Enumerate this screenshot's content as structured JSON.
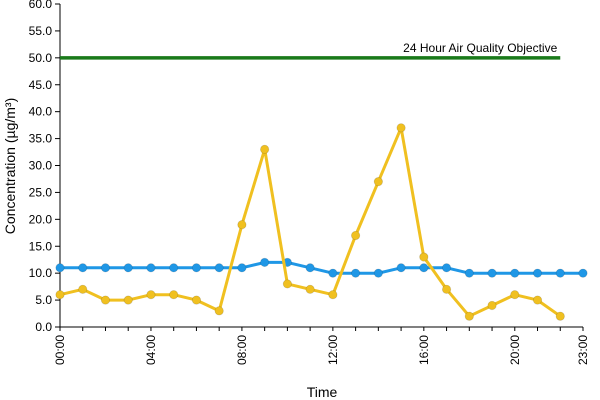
{
  "chart_data": {
    "type": "line",
    "xlabel": "Time",
    "ylabel": "Concentration (µg/m³)",
    "ylim": [
      0,
      60
    ],
    "y_ticks": [
      "0.0",
      "5.0",
      "10.0",
      "15.0",
      "20.0",
      "25.0",
      "30.0",
      "35.0",
      "40.0",
      "45.0",
      "50.0",
      "55.0",
      "60.0"
    ],
    "x_range_hours": [
      0,
      23
    ],
    "x_ticks": [
      {
        "hour": 0,
        "label": "00:00"
      },
      {
        "hour": 4,
        "label": "04:00"
      },
      {
        "hour": 8,
        "label": "08:00"
      },
      {
        "hour": 12,
        "label": "12:00"
      },
      {
        "hour": 16,
        "label": "16:00"
      },
      {
        "hour": 20,
        "label": "20:00"
      },
      {
        "hour": 23,
        "label": "23:00"
      }
    ],
    "grid": false,
    "series": [
      {
        "color": "#1f97e6",
        "x": [
          0,
          1,
          2,
          3,
          4,
          5,
          6,
          7,
          8,
          9,
          10,
          11,
          12,
          13,
          14,
          15,
          16,
          17,
          18,
          19,
          20,
          21,
          22,
          23
        ],
        "values": [
          11,
          11,
          11,
          11,
          11,
          11,
          11,
          11,
          11,
          12,
          12,
          11,
          10,
          10,
          10,
          11,
          11,
          11,
          10,
          10,
          10,
          10,
          10,
          10
        ]
      },
      {
        "color": "#f0c020",
        "x": [
          0,
          1,
          2,
          3,
          4,
          5,
          6,
          7,
          8,
          9,
          10,
          11,
          12,
          13,
          14,
          15,
          16,
          17,
          18,
          19,
          20,
          21,
          22
        ],
        "values": [
          6,
          7,
          5,
          5,
          6,
          6,
          5,
          3,
          19,
          33,
          8,
          7,
          6,
          17,
          27,
          37,
          13,
          7,
          2,
          4,
          6,
          5,
          2
        ]
      }
    ],
    "reference_line": {
      "value": 50,
      "x_range_hours": [
        0,
        22
      ],
      "color": "#1a7a1a",
      "label": "24 Hour Air Quality Objective"
    }
  }
}
